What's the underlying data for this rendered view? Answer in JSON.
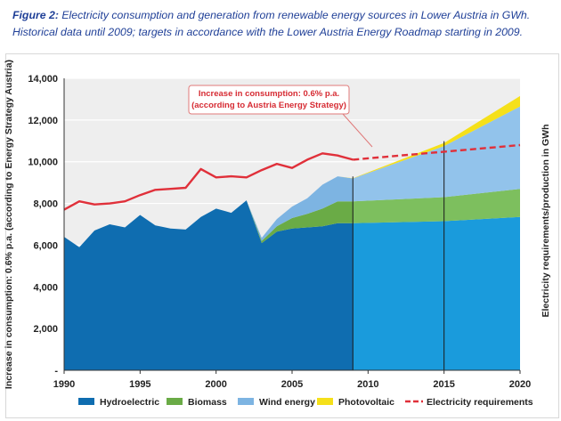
{
  "caption": {
    "figure_label": "Figure 2:",
    "line1_rest": "Electricity consumption and generation from renewable energy sources in Lower Austria in GWh.",
    "line2": "Historical data until 2009; targets in accordance with the Lower Austria Energy Roadmap starting in 2009."
  },
  "chart_data": {
    "type": "area",
    "title": "",
    "xlabel": "",
    "ylabel_left": "Increase in consumption: 0.6% p.a. (according to Energy Strategy Austria)",
    "ylabel_right": "Electricity requirements/production in GWh",
    "xlim": [
      1990,
      2020
    ],
    "ylim": [
      0,
      14000
    ],
    "x_ticks": [
      "1990",
      "1995",
      "2000",
      "2005",
      "2010",
      "2015",
      "2020"
    ],
    "y_ticks": [
      "-",
      "2,000",
      "4,000",
      "6,000",
      "8,000",
      "10,000",
      "12,000",
      "14,000"
    ],
    "y_tick_values": [
      0,
      2000,
      4000,
      6000,
      8000,
      10000,
      12000,
      14000
    ],
    "grid": true,
    "vertical_markers": [
      2009,
      2015
    ],
    "annotation": {
      "line1": "Increase in consumption: 0.6% p.a.",
      "line2": "(according to Austria Energy Strategy)"
    },
    "series": [
      {
        "name": "Hydroelectric",
        "color": "#0f6db0",
        "color_target": "#1a9bdc",
        "kind": "stack",
        "x": [
          1990,
          1991,
          1992,
          1993,
          1994,
          1995,
          1996,
          1997,
          1998,
          1999,
          2000,
          2001,
          2002,
          2003,
          2004,
          2005,
          2006,
          2007,
          2008,
          2009,
          2015,
          2020
        ],
        "values": [
          6400,
          5900,
          6700,
          7000,
          6850,
          7450,
          6950,
          6800,
          6750,
          7350,
          7750,
          7550,
          8150,
          6100,
          6650,
          6800,
          6850,
          6900,
          7050,
          7050,
          7150,
          7350
        ]
      },
      {
        "name": "Biomass",
        "color": "#6aab46",
        "color_target": "#7dbf5e",
        "kind": "stack",
        "x": [
          1990,
          2002,
          2003,
          2004,
          2005,
          2006,
          2007,
          2008,
          2009,
          2015,
          2020
        ],
        "values": [
          0,
          0,
          100,
          250,
          500,
          650,
          850,
          1050,
          1050,
          1150,
          1350
        ]
      },
      {
        "name": "Wind energy",
        "color": "#7db4e2",
        "color_target": "#92c3eb",
        "kind": "stack",
        "x": [
          1990,
          2002,
          2003,
          2004,
          2005,
          2006,
          2007,
          2008,
          2009,
          2015,
          2020
        ],
        "values": [
          0,
          0,
          150,
          350,
          550,
          750,
          1150,
          1200,
          1100,
          2450,
          3950
        ]
      },
      {
        "name": "Photovoltaic",
        "color": "#f5e01a",
        "color_target": "#f5e01a",
        "kind": "stack",
        "x": [
          1990,
          2008,
          2009,
          2015,
          2020
        ],
        "values": [
          0,
          0,
          10,
          150,
          500
        ]
      },
      {
        "name": "Electricity requirements",
        "color": "#e0303a",
        "kind": "line",
        "x": [
          1990,
          1991,
          1992,
          1993,
          1994,
          1995,
          1996,
          1997,
          1998,
          1999,
          2000,
          2001,
          2002,
          2003,
          2004,
          2005,
          2006,
          2007,
          2008,
          2009
        ],
        "values": [
          7700,
          8100,
          7950,
          8000,
          8100,
          8400,
          8650,
          8700,
          8750,
          9650,
          9250,
          9300,
          9250,
          9600,
          9900,
          9700,
          10100,
          10400,
          10300,
          10100
        ],
        "projection": {
          "x": [
            2009,
            2020
          ],
          "values": [
            10100,
            10800
          ]
        }
      }
    ],
    "legend_position": "bottom"
  }
}
